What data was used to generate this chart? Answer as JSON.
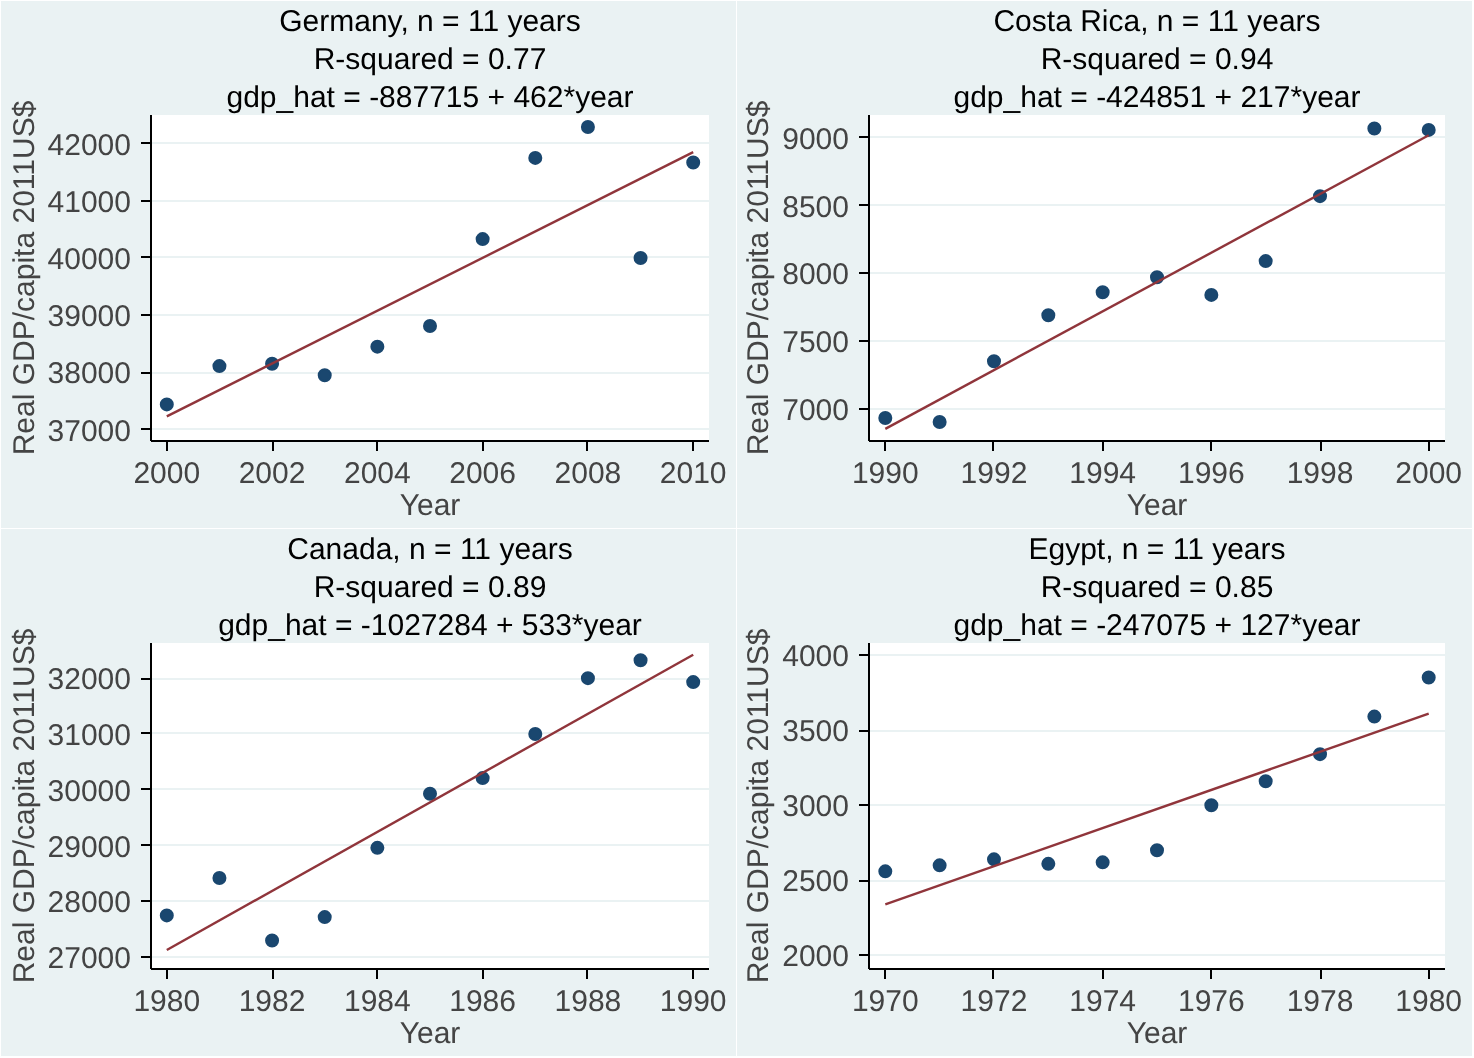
{
  "chart_data": [
    {
      "type": "scatter",
      "title": "Germany, n = 11 years",
      "annotations": [
        "R-squared = 0.77",
        "gdp_hat = -887715 + 462*year"
      ],
      "xlabel": "Year",
      "ylabel": "Real GDP/capita 2011US$",
      "grid": "y",
      "xlim": [
        1999.7,
        2010.3
      ],
      "xticks": [
        2000,
        2002,
        2004,
        2006,
        2008,
        2010
      ],
      "ylim": [
        36800,
        42500
      ],
      "yticks": [
        37000,
        38000,
        39000,
        40000,
        41000,
        42000
      ],
      "series": [
        {
          "marker": "circle",
          "color": "#1a476f",
          "x": [
            2000,
            2001,
            2002,
            2003,
            2004,
            2005,
            2006,
            2007,
            2008,
            2009,
            2010
          ],
          "values": [
            37440,
            38110,
            38150,
            37950,
            38450,
            38810,
            40330,
            41750,
            42290,
            40000,
            41670
          ]
        },
        {
          "type": "line",
          "color": "#90353b",
          "x": [
            2000,
            2010
          ],
          "values": [
            37230,
            41850
          ]
        }
      ]
    },
    {
      "type": "scatter",
      "title": "Costa Rica, n = 11 years",
      "annotations": [
        "R-squared = 0.94",
        "gdp_hat = -424851 + 217*year"
      ],
      "xlabel": "Year",
      "ylabel": "Real GDP/capita 2011US$",
      "grid": "y",
      "xlim": [
        1989.7,
        2000.3
      ],
      "xticks": [
        1990,
        1992,
        1994,
        1996,
        1998,
        2000
      ],
      "ylim": [
        6760,
        9170
      ],
      "yticks": [
        7000,
        7500,
        8000,
        8500,
        9000
      ],
      "series": [
        {
          "marker": "circle",
          "color": "#1a476f",
          "x": [
            1990,
            1991,
            1992,
            1993,
            1994,
            1995,
            1996,
            1997,
            1998,
            1999,
            2000
          ],
          "values": [
            6930,
            6900,
            7350,
            7690,
            7860,
            7970,
            7840,
            8090,
            8570,
            9070,
            9060
          ]
        },
        {
          "type": "line",
          "color": "#90353b",
          "x": [
            1990,
            2000
          ],
          "values": [
            6850,
            9020
          ]
        }
      ]
    },
    {
      "type": "scatter",
      "title": "Canada, n = 11 years",
      "annotations": [
        "R-squared = 0.89",
        "gdp_hat = -1027284 + 533*year"
      ],
      "xlabel": "Year",
      "ylabel": "Real GDP/capita 2011US$",
      "grid": "y",
      "xlim": [
        1979.7,
        1990.3
      ],
      "xticks": [
        1980,
        1982,
        1984,
        1986,
        1988,
        1990
      ],
      "ylim": [
        26790,
        32630
      ],
      "yticks": [
        27000,
        28000,
        29000,
        30000,
        31000,
        32000
      ],
      "series": [
        {
          "marker": "circle",
          "color": "#1a476f",
          "x": [
            1980,
            1981,
            1982,
            1983,
            1984,
            1985,
            1986,
            1987,
            1988,
            1989,
            1990
          ],
          "values": [
            27750,
            28420,
            27300,
            27720,
            28960,
            29930,
            30210,
            31000,
            32000,
            32320,
            31930
          ]
        },
        {
          "type": "line",
          "color": "#90353b",
          "x": [
            1980,
            1990
          ],
          "values": [
            27130,
            32420
          ]
        }
      ]
    },
    {
      "type": "scatter",
      "title": "Egypt, n = 11 years",
      "annotations": [
        "R-squared = 0.85",
        "gdp_hat = -247075 + 127*year"
      ],
      "xlabel": "Year",
      "ylabel": "Real GDP/capita 2011US$",
      "grid": "y",
      "xlim": [
        1969.7,
        1980.3
      ],
      "xticks": [
        1970,
        1972,
        1974,
        1976,
        1978,
        1980
      ],
      "ylim": [
        1910,
        4080
      ],
      "yticks": [
        2000,
        2500,
        3000,
        3500,
        4000
      ],
      "series": [
        {
          "marker": "circle",
          "color": "#1a476f",
          "x": [
            1970,
            1971,
            1972,
            1973,
            1974,
            1975,
            1976,
            1977,
            1978,
            1979,
            1980
          ],
          "values": [
            2560,
            2600,
            2640,
            2610,
            2620,
            2700,
            3000,
            3160,
            3340,
            3590,
            3850
          ]
        },
        {
          "type": "line",
          "color": "#90353b",
          "x": [
            1970,
            1980
          ],
          "values": [
            2340,
            3610
          ]
        }
      ]
    }
  ]
}
